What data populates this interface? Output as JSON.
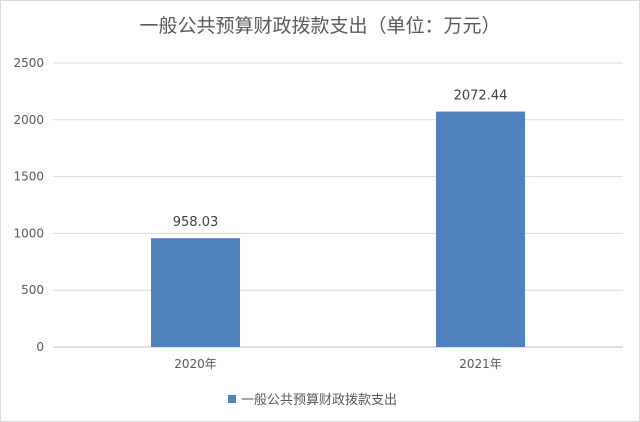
{
  "chart_data": {
    "type": "bar",
    "title": "一般公共预算财政拨款支出（单位：万元）",
    "categories": [
      "2020年",
      "2021年"
    ],
    "series": [
      {
        "name": "一般公共预算财政拨款支出",
        "values": [
          958.03,
          2072.44
        ],
        "data_labels": [
          "958.03",
          "2072.44"
        ],
        "color": "#4f81bd"
      }
    ],
    "yticks": [
      "0",
      "500",
      "1000",
      "1500",
      "2000",
      "2500"
    ],
    "ylim": [
      0,
      2500
    ],
    "grid": true,
    "legend_position": "bottom",
    "colors": {
      "gridline": "#d9d9d9",
      "axis": "#bfbfbf",
      "text": "#595959"
    }
  }
}
